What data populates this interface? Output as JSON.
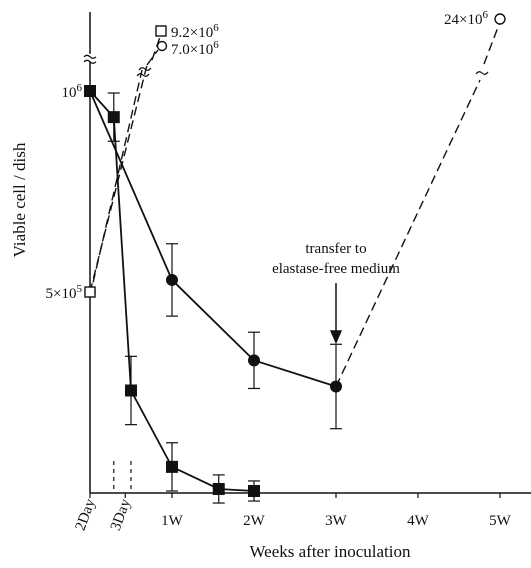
{
  "chart_data": {
    "type": "line",
    "xlabel": "Weeks after inoculation",
    "ylabel": "Viable cell / dish",
    "x_tick_labels": [
      {
        "x": 0,
        "label": "2Day",
        "rotated": true
      },
      {
        "x": 0.43,
        "label": "3Day",
        "rotated": true
      },
      {
        "x": 1,
        "label": "1W",
        "rotated": false
      },
      {
        "x": 2,
        "label": "2W",
        "rotated": false
      },
      {
        "x": 3,
        "label": "3W",
        "rotated": false
      },
      {
        "x": 4,
        "label": "4W",
        "rotated": false
      },
      {
        "x": 5,
        "label": "5W",
        "rotated": false
      }
    ],
    "dotted_verticals_x": [
      0.29,
      0.5
    ],
    "y_tick_labels": [
      {
        "value": 1000000,
        "base": "10",
        "exp": "6"
      },
      {
        "value": 500000,
        "base": "5×10",
        "exp": "5"
      }
    ],
    "xlim": [
      -0.05,
      5.4
    ],
    "ylim": [
      0,
      1070000
    ],
    "axis_break_y": 1080000,
    "series": [
      {
        "marker": "circle-filled",
        "points": [
          {
            "x": 0,
            "y": 1000000
          },
          {
            "x": 1,
            "y": 530000,
            "err": 90000
          },
          {
            "x": 2,
            "y": 330000,
            "err": 70000
          },
          {
            "x": 3,
            "y": 265000,
            "err": 105000
          }
        ]
      },
      {
        "marker": "square-filled",
        "points": [
          {
            "x": 0,
            "y": 1000000
          },
          {
            "x": 0.29,
            "y": 935000,
            "err": 60000
          },
          {
            "x": 0.5,
            "y": 255000,
            "err": 85000
          },
          {
            "x": 1,
            "y": 65000,
            "err": 60000
          },
          {
            "x": 1.57,
            "y": 10000,
            "err": 35000
          },
          {
            "x": 2,
            "y": 5000,
            "err": 25000
          }
        ]
      }
    ],
    "dashed_growth": [
      {
        "from": {
          "x": 0,
          "y": 500000
        },
        "marker_end": "square-open",
        "end_label": {
          "base": "9.2×10",
          "exp": "6"
        }
      },
      {
        "from": {
          "x": 0,
          "y": 500000
        },
        "marker_end": "circle-open",
        "end_label": {
          "base": "7.0×10",
          "exp": "6"
        }
      },
      {
        "from": {
          "x": 3,
          "y": 265000
        },
        "marker_end": "circle-open",
        "end_x": 5,
        "end_label": {
          "base": "24×10",
          "exp": "6"
        }
      }
    ],
    "annotations": [
      {
        "text_lines": [
          "transfer to",
          "elastase-free medium"
        ],
        "arrow_to": {
          "x": 3,
          "y": 370000
        }
      }
    ]
  }
}
